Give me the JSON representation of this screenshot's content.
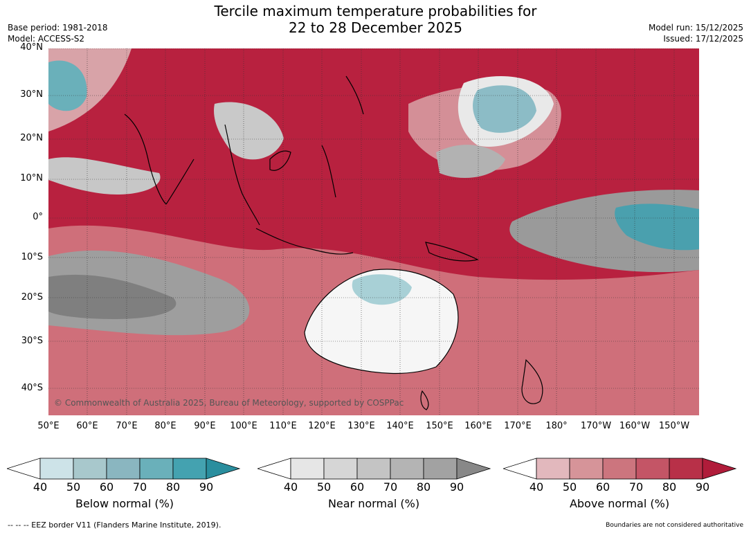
{
  "title": {
    "line1": "Tercile maximum temperature probabilities for",
    "line2": "22 to 28 December 2025"
  },
  "meta_left": {
    "base_period": "Base period: 1981-2018",
    "model": "Model: ACCESS-S2"
  },
  "meta_right": {
    "model_run": "Model run: 15/12/2025",
    "issued": "Issued: 17/12/2025"
  },
  "map": {
    "copyright": "© Commonwealth of Australia 2025, Bureau of Meteorology, supported by COSPPac",
    "lat_labels": [
      "40°N",
      "30°N",
      "20°N",
      "10°N",
      "0°",
      "10°S",
      "20°S",
      "30°S",
      "40°S"
    ],
    "lon_labels": [
      "50°E",
      "60°E",
      "70°E",
      "80°E",
      "90°E",
      "100°E",
      "110°E",
      "120°E",
      "130°E",
      "140°E",
      "150°E",
      "160°E",
      "170°E",
      "180°",
      "170°W",
      "160°W",
      "150°W"
    ]
  },
  "colorbars": [
    {
      "name": "below",
      "label": "Below normal (%)",
      "ticks": [
        "40",
        "50",
        "60",
        "70",
        "80",
        "90"
      ],
      "colors": [
        "#ffffff",
        "#cde3e8",
        "#a8c8cc",
        "#8ab6c0",
        "#6ab0ba",
        "#44a2b0",
        "#2a8e9e"
      ]
    },
    {
      "name": "near",
      "label": "Near normal (%)",
      "ticks": [
        "40",
        "50",
        "60",
        "70",
        "80",
        "90"
      ],
      "colors": [
        "#ffffff",
        "#e6e6e6",
        "#d6d6d6",
        "#c4c4c4",
        "#b4b4b4",
        "#a2a2a2",
        "#888888"
      ]
    },
    {
      "name": "above",
      "label": "Above normal (%)",
      "ticks": [
        "40",
        "50",
        "60",
        "70",
        "80",
        "90"
      ],
      "colors": [
        "#ffffff",
        "#e2b8bd",
        "#d69499",
        "#cc757e",
        "#c45566",
        "#b83048",
        "#b01c3a"
      ]
    }
  ],
  "footer": {
    "eez_note": "--  --  -- EEZ border V11 (Flanders Marine Institute, 2019).",
    "boundaries_note": "Boundaries are not considered authoritative"
  }
}
